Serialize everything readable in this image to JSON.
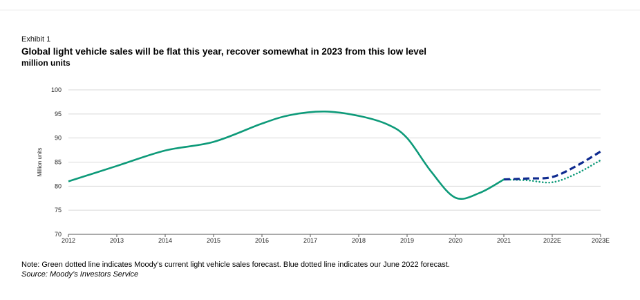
{
  "header": {
    "exhibit": "Exhibit 1",
    "title": "Global light vehicle sales will be flat this year, recover somewhat in 2023 from this low level",
    "subtitle": "million units"
  },
  "footer": {
    "note": "Note: Green dotted line indicates Moody’s current light vehicle sales forecast. Blue dotted line indicates our June 2022 forecast.",
    "source": "Source: Moody’s Investors Service"
  },
  "colors": {
    "green": "#0d9a79",
    "blue": "#0e2a8f",
    "gridline": "#d9d9d9",
    "axis": "#555555"
  },
  "chart_data": {
    "type": "line",
    "title": "Global light vehicle sales will be flat this year, recover somewhat in 2023 from this low level",
    "subtitle": "million units",
    "xlabel": "",
    "ylabel": "Million units",
    "ylim": [
      70,
      100
    ],
    "yticks": [
      70,
      75,
      80,
      85,
      90,
      95,
      100
    ],
    "categories": [
      "2012",
      "2013",
      "2014",
      "2015",
      "2016",
      "2017",
      "2018",
      "2019",
      "2020",
      "2021",
      "2022E",
      "2023E"
    ],
    "grid": true,
    "legend": "none",
    "series": [
      {
        "style": "solid",
        "color": "#0d9a79",
        "points": [
          {
            "x": 2012.0,
            "y": 81.0
          },
          {
            "x": 2013.0,
            "y": 84.2
          },
          {
            "x": 2014.0,
            "y": 87.4
          },
          {
            "x": 2015.0,
            "y": 89.2
          },
          {
            "x": 2016.0,
            "y": 93.0
          },
          {
            "x": 2016.6,
            "y": 94.8
          },
          {
            "x": 2017.3,
            "y": 95.5
          },
          {
            "x": 2018.0,
            "y": 94.6
          },
          {
            "x": 2018.6,
            "y": 92.8
          },
          {
            "x": 2019.0,
            "y": 90.0
          },
          {
            "x": 2019.5,
            "y": 83.0
          },
          {
            "x": 2020.0,
            "y": 77.6
          },
          {
            "x": 2020.5,
            "y": 78.6
          },
          {
            "x": 2021.0,
            "y": 81.4
          }
        ]
      },
      {
        "style": "dotted",
        "color": "#0d9a79",
        "points": [
          {
            "x": 2021.0,
            "y": 81.4
          },
          {
            "x": 2021.5,
            "y": 81.2
          },
          {
            "x": 2022.0,
            "y": 80.8
          },
          {
            "x": 2022.5,
            "y": 82.6
          },
          {
            "x": 2023.0,
            "y": 85.4
          }
        ]
      },
      {
        "style": "dashed",
        "color": "#0e2a8f",
        "points": [
          {
            "x": 2021.0,
            "y": 81.4
          },
          {
            "x": 2021.5,
            "y": 81.6
          },
          {
            "x": 2022.0,
            "y": 81.9
          },
          {
            "x": 2022.5,
            "y": 84.2
          },
          {
            "x": 2023.0,
            "y": 87.2
          }
        ]
      }
    ]
  }
}
